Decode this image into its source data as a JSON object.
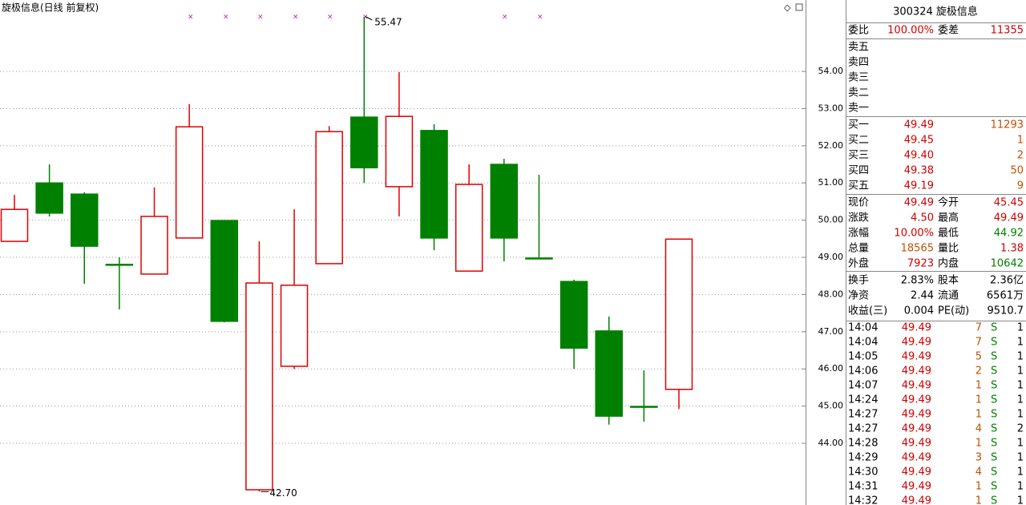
{
  "chart_data": {
    "type": "candlestick",
    "title": "旋极信息(日线 前复权)",
    "categories": [
      null,
      null,
      null,
      null,
      null,
      null,
      null,
      null,
      null,
      null,
      null,
      null,
      null,
      null,
      null,
      null,
      null,
      null,
      null,
      null
    ],
    "open": [
      49.43,
      51.0,
      50.7,
      48.81,
      48.55,
      49.52,
      49.99,
      42.75,
      46.07,
      48.83,
      52.77,
      50.9,
      52.41,
      48.63,
      51.5,
      48.98,
      48.35,
      47.02,
      44.99,
      45.45
    ],
    "high": [
      50.68,
      51.5,
      50.75,
      49.0,
      50.88,
      53.12,
      49.99,
      49.43,
      50.29,
      52.53,
      55.47,
      53.98,
      52.58,
      51.5,
      51.65,
      51.22,
      48.4,
      47.41,
      45.96,
      49.49
    ],
    "low": [
      49.43,
      50.1,
      48.29,
      47.6,
      48.55,
      49.52,
      47.25,
      42.7,
      46.0,
      48.83,
      51.0,
      50.1,
      49.19,
      48.63,
      48.89,
      48.95,
      46.0,
      44.5,
      44.58,
      44.92
    ],
    "close": [
      50.29,
      50.19,
      49.3,
      48.81,
      50.1,
      52.51,
      47.28,
      48.31,
      48.25,
      52.38,
      51.41,
      52.79,
      49.52,
      50.96,
      49.52,
      48.98,
      46.56,
      44.73,
      44.99,
      49.49
    ],
    "up_color": "#e00000",
    "down_color": "#008000",
    "ylim": [
      42.34,
      55.92
    ],
    "yticks": [
      {
        "value": 44,
        "label": "44.00"
      },
      {
        "value": 45,
        "label": "45.00"
      },
      {
        "value": 46,
        "label": "46.00"
      },
      {
        "value": 47,
        "label": "47.00"
      },
      {
        "value": 48,
        "label": "48.00"
      },
      {
        "value": 49,
        "label": "49.00"
      },
      {
        "value": 50,
        "label": "50.00"
      },
      {
        "value": 51,
        "label": "51.00"
      },
      {
        "value": 52,
        "label": "52.00"
      },
      {
        "value": 53,
        "label": "53.00"
      },
      {
        "value": 54,
        "label": "54.00"
      }
    ],
    "grid": true,
    "max_annotation": 55.47,
    "min_annotation": {
      "value": 42.7,
      "label": "42.70"
    }
  },
  "panel": {
    "code_name": "300324 旋极信息",
    "order_ratio": {
      "label": "委比",
      "value": "100.00%"
    },
    "order_diff": {
      "label": "委差",
      "value": "11355"
    },
    "asks": [
      "卖五",
      "卖四",
      "卖三",
      "卖二",
      "卖一"
    ],
    "bids": [
      {
        "label": "买一",
        "price": "49.49",
        "volume": "11293"
      },
      {
        "label": "买二",
        "price": "49.45",
        "volume": "1"
      },
      {
        "label": "买三",
        "price": "49.40",
        "volume": "2"
      },
      {
        "label": "买四",
        "price": "49.38",
        "volume": "50"
      },
      {
        "label": "买五",
        "price": "49.19",
        "volume": "9"
      }
    ],
    "quote": [
      [
        {
          "label": "现价",
          "value": "49.49",
          "color": "#d00000"
        },
        {
          "label": "今开",
          "value": "45.45",
          "color": "#d00000"
        }
      ],
      [
        {
          "label": "涨跌",
          "value": "4.50",
          "color": "#d00000"
        },
        {
          "label": "最高",
          "value": "49.49",
          "color": "#d00000"
        }
      ],
      [
        {
          "label": "涨幅",
          "value": "10.00%",
          "color": "#d00000"
        },
        {
          "label": "最低",
          "value": "44.92",
          "color": "#008000"
        }
      ],
      [
        {
          "label": "总量",
          "value": "18565",
          "color": "#c05000"
        },
        {
          "label": "量比",
          "value": "1.38",
          "color": "#d00000"
        }
      ],
      [
        {
          "label": "外盘",
          "value": "7923",
          "color": "#d00000"
        },
        {
          "label": "内盘",
          "value": "10642",
          "color": "#008000"
        }
      ]
    ],
    "stats": [
      [
        {
          "label": "换手",
          "value": "2.83%"
        },
        {
          "label": "股本",
          "value": "2.36亿"
        }
      ],
      [
        {
          "label": "净资",
          "value": "2.44"
        },
        {
          "label": "流通",
          "value": "6561万"
        }
      ],
      [
        {
          "label": "收益(三)",
          "value": "0.004"
        },
        {
          "label": "PE(动)",
          "value": "9510.7"
        }
      ]
    ],
    "trades": [
      {
        "time": "14:04",
        "price": "49.49",
        "volume": "7",
        "side": "S",
        "count": "1"
      },
      {
        "time": "14:04",
        "price": "49.49",
        "volume": "7",
        "side": "S",
        "count": "1"
      },
      {
        "time": "14:05",
        "price": "49.49",
        "volume": "5",
        "side": "S",
        "count": "1"
      },
      {
        "time": "14:06",
        "price": "49.49",
        "volume": "2",
        "side": "S",
        "count": "1"
      },
      {
        "time": "14:07",
        "price": "49.49",
        "volume": "1",
        "side": "S",
        "count": "1"
      },
      {
        "time": "14:24",
        "price": "49.49",
        "volume": "1",
        "side": "S",
        "count": "1"
      },
      {
        "time": "14:27",
        "price": "49.49",
        "volume": "1",
        "side": "S",
        "count": "1"
      },
      {
        "time": "14:27",
        "price": "49.49",
        "volume": "4",
        "side": "S",
        "count": "2"
      },
      {
        "time": "14:28",
        "price": "49.49",
        "volume": "1",
        "side": "S",
        "count": "1"
      },
      {
        "time": "14:29",
        "price": "49.49",
        "volume": "3",
        "side": "S",
        "count": "1"
      },
      {
        "time": "14:30",
        "price": "49.49",
        "volume": "4",
        "side": "S",
        "count": "1"
      },
      {
        "time": "14:31",
        "price": "49.49",
        "volume": "1",
        "side": "S",
        "count": "1"
      },
      {
        "time": "14:32",
        "price": "49.49",
        "volume": "1",
        "side": "S",
        "count": "1"
      }
    ]
  }
}
